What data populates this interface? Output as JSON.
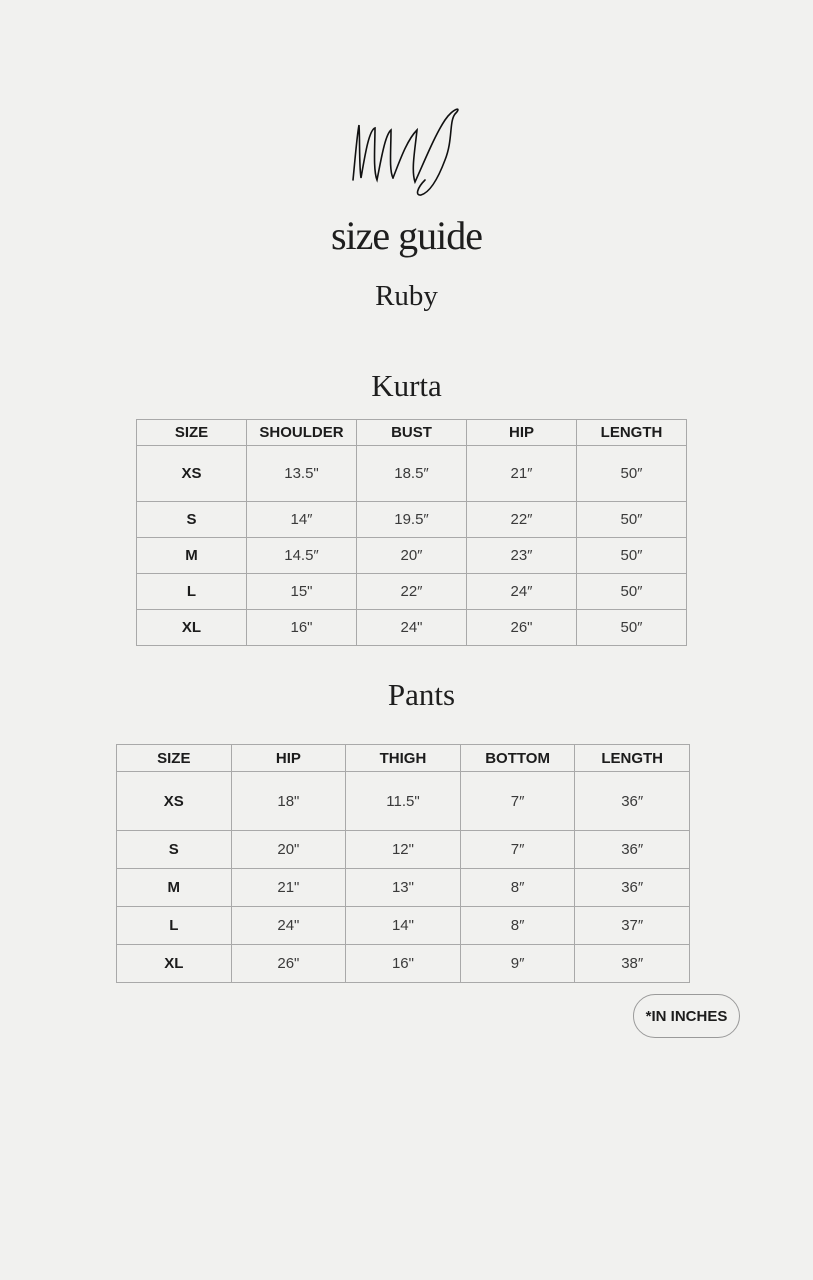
{
  "logo": {
    "text": "MA",
    "icon": "signature-logo"
  },
  "header": {
    "title": "size guide",
    "product": "Ruby"
  },
  "kurta": {
    "title": "Kurta",
    "columns": [
      "SIZE",
      "SHOULDER",
      "BUST",
      "HIP",
      "LENGTH"
    ],
    "rows": [
      [
        "XS",
        "13.5\"",
        "18.5″",
        "21″",
        "50″"
      ],
      [
        "S",
        "14″",
        "19.5″",
        "22″",
        "50″"
      ],
      [
        "M",
        "14.5″",
        "20″",
        "23″",
        "50″"
      ],
      [
        "L",
        "15\"",
        "22″",
        "24″",
        "50″"
      ],
      [
        "XL",
        "16\"",
        "24\"",
        "26\"",
        "50″"
      ]
    ]
  },
  "pants": {
    "title": "Pants",
    "columns": [
      "SIZE",
      "HIP",
      "THIGH",
      "BOTTOM",
      "LENGTH"
    ],
    "rows": [
      [
        "XS",
        "18\"",
        "11.5\"",
        "7″",
        "36″"
      ],
      [
        "S",
        "20\"",
        "12\"",
        "7″",
        "36″"
      ],
      [
        "M",
        "21\"",
        "13\"",
        "8″",
        "36″"
      ],
      [
        "L",
        "24\"",
        "14\"",
        "8″",
        "37″"
      ],
      [
        "XL",
        "26\"",
        "16\"",
        "9″",
        "38″"
      ]
    ]
  },
  "note": "*IN INCHES",
  "colors": {
    "background": "#f1f1ef",
    "border": "#a9a9a9",
    "text": "#1e1e1e"
  }
}
